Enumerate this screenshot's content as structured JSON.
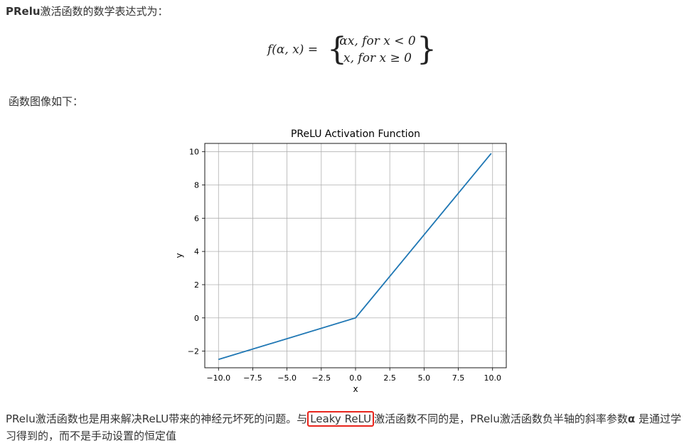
{
  "intro": {
    "bold": "PRelu",
    "text": "激活函数的数学表达式为："
  },
  "formula": {
    "lhs": "f(α, x) =",
    "case1": "αx, for x < 0",
    "case2": "x, for x ≥ 0"
  },
  "subhead": "函数图像如下：",
  "chart_data": {
    "type": "line",
    "title": "PReLU Activation Function",
    "xlabel": "x",
    "ylabel": "y",
    "xlim": [
      -11,
      11
    ],
    "ylim": [
      -3,
      10.5
    ],
    "grid": true,
    "xticks": [
      -10.0,
      -7.5,
      -5.0,
      -2.5,
      0.0,
      2.5,
      5.0,
      7.5,
      10.0
    ],
    "xtick_labels": [
      "−10.0",
      "−7.5",
      "−5.0",
      "−2.5",
      "0.0",
      "2.5",
      "5.0",
      "7.5",
      "10.0"
    ],
    "yticks": [
      -2,
      0,
      2,
      4,
      6,
      8,
      10
    ],
    "ytick_labels": [
      "−2",
      "0",
      "2",
      "4",
      "6",
      "8",
      "10"
    ],
    "series": [
      {
        "color": "#1f77b4",
        "x": [
          -10,
          0,
          9.9
        ],
        "y": [
          -2.5,
          0,
          9.9
        ]
      }
    ]
  },
  "paragraph": {
    "part1": "PRelu激活函数也是用来解决ReLU带来的神经元坏死的问题。与",
    "highlight": "Leaky ReLU",
    "part2": "激活函数不同的是，PRelu激活函数负半轴的斜率参数",
    "alpha": "α",
    "part3": " 是通过学习得到的，而不是手动设置的恒定值"
  }
}
